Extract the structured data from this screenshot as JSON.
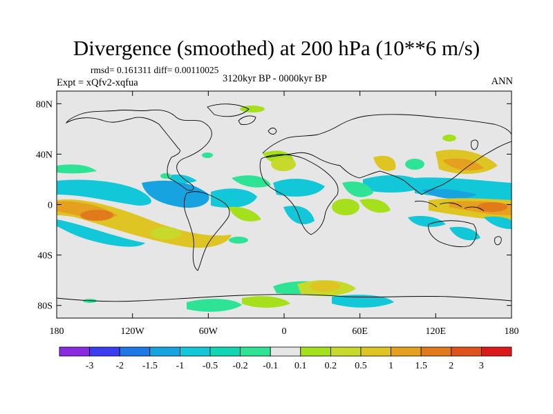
{
  "title": "Divergence (smoothed) at 200 hPa (10**6 m/s)",
  "stats": "rmsd= 0.161311 diff= 0.00110025",
  "experiment": "Expt = xQfv2-xqfua",
  "period": "3120kyr BP - 0000kyr BP",
  "season": "ANN",
  "colors": {
    "background": "#e6e6e6",
    "coast": "#000000",
    "neg_3": "#8a2be2",
    "neg_2": "#3c3cf0",
    "neg_15": "#1e78e6",
    "neg_1": "#16a3e0",
    "neg_05": "#12c8d8",
    "neg_02": "#10d6b4",
    "neg_01": "#2fe394",
    "zero": "#e6e6e6",
    "pos_01": "#a6df1c",
    "pos_02": "#c7d92a",
    "pos_05": "#dfc524",
    "pos_1": "#e6a020",
    "pos_15": "#e07a1c",
    "pos_2": "#e0521c",
    "pos_3": "#dd1a1a"
  },
  "lat_axis": {
    "ticks": [
      "80N",
      "40N",
      "0",
      "40S",
      "80S"
    ],
    "values": [
      80,
      40,
      0,
      -40,
      -80
    ]
  },
  "lon_axis": {
    "ticks": [
      "180",
      "120W",
      "60W",
      "0",
      "60E",
      "120E",
      "180"
    ],
    "values": [
      -180,
      -120,
      -60,
      0,
      60,
      120,
      180
    ]
  },
  "colorbar": {
    "labels": [
      "-3",
      "-2",
      "-1.5",
      "-1",
      "-0.5",
      "-0.2",
      "-0.1",
      "0.1",
      "0.2",
      "0.5",
      "1",
      "1.5",
      "2",
      "3"
    ],
    "colors": [
      "#8a2be2",
      "#3c3cf0",
      "#1e78e6",
      "#16a3e0",
      "#12c8d8",
      "#10d6b4",
      "#2fe394",
      "#e6e6e6",
      "#a6df1c",
      "#c7d92a",
      "#dfc524",
      "#e6a020",
      "#e07a1c",
      "#e0521c",
      "#dd1a1a"
    ]
  }
}
